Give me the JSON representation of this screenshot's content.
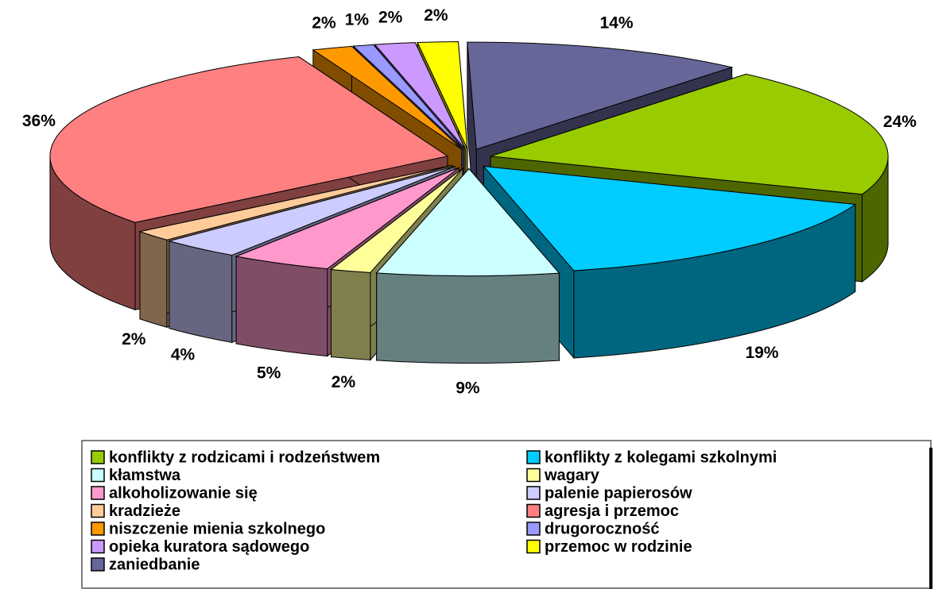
{
  "chart_data": {
    "type": "pie",
    "categories": [
      "konflikty z rodzicami i rodzeństwem",
      "konflikty z kolegami szkolnymi",
      "kłamstwa",
      "wagary",
      "alkoholizowanie się",
      "palenie papierosów",
      "kradzieże",
      "agresja i przemoc",
      "niszczenie mienia szkolnego",
      "drugoroczność",
      "opieka kuratora sądowego",
      "przemoc w rodzinie",
      "zaniedbanie"
    ],
    "values": [
      24,
      19,
      9,
      2,
      5,
      4,
      2,
      36,
      2,
      1,
      2,
      2,
      14
    ],
    "value_labels": [
      "24%",
      "19%",
      "9%",
      "2%",
      "5%",
      "4%",
      "2%",
      "36%",
      "2%",
      "1%",
      "2%",
      "2%",
      "14%"
    ],
    "colors": [
      "#99cc00",
      "#00ccff",
      "#ccffff",
      "#ffff99",
      "#ff99cc",
      "#ccccff",
      "#ffcc99",
      "#ff8080",
      "#ff9900",
      "#9999ff",
      "#cc99ff",
      "#ffff00",
      "#666699"
    ],
    "legend": "bottom"
  }
}
